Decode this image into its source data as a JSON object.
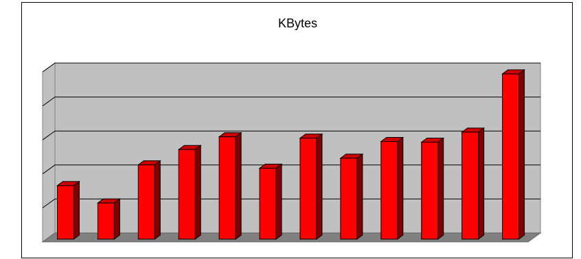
{
  "chart_data": {
    "type": "bar",
    "title": "KBytes",
    "categories": [
      "",
      "",
      "",
      "",
      "",
      "",
      "",
      "",
      "",
      "",
      "",
      ""
    ],
    "values": [
      1.6,
      1.08,
      2.22,
      2.68,
      3.06,
      2.12,
      3.02,
      2.42,
      2.92,
      2.9,
      3.2,
      4.94
    ],
    "ylim": [
      0,
      5
    ],
    "grid": true,
    "three_d": true,
    "colors": {
      "bar_front": "#ff0000",
      "bar_top": "#cc0000",
      "bar_side": "#800000",
      "plot_back": "#c0c0c0",
      "plot_wall": "#c0c0c0",
      "plot_floor": "#808080",
      "grid": "#000000"
    }
  }
}
